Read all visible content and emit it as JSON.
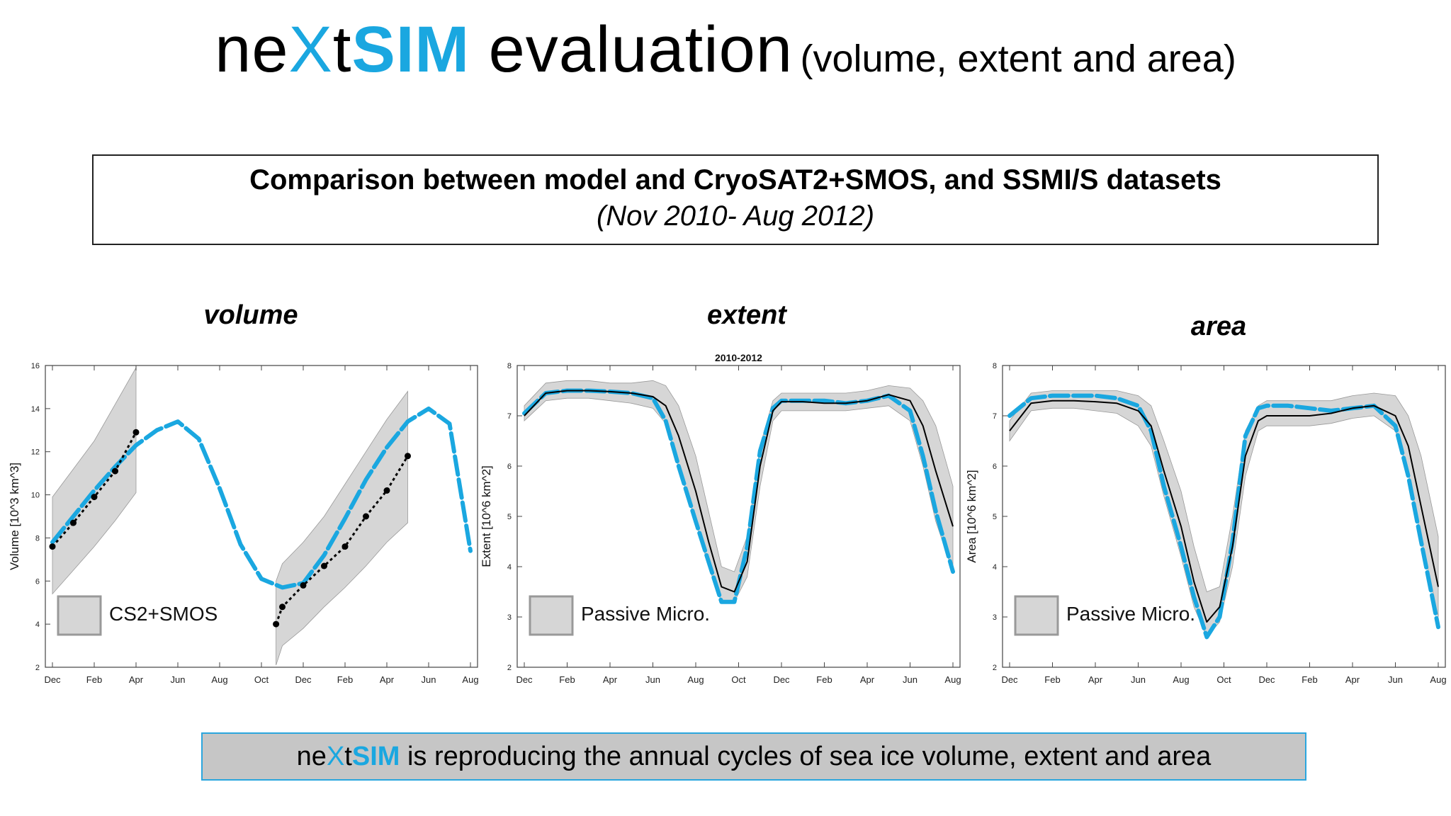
{
  "header": {
    "title_part1": "ne",
    "title_part2": "X",
    "title_part3": "t",
    "title_part4": "SIM",
    "title_part5": " evaluation",
    "title_sub": "(volume, extent and area)"
  },
  "comparison": {
    "line1": "Comparison between model and CryoSAT2+SMOS, and SSMI/S datasets",
    "line2": "(Nov 2010- Aug 2012)"
  },
  "panels": {
    "volume_label": "volume",
    "extent_label": "extent",
    "area_label": "area"
  },
  "footer": {
    "part1": "ne",
    "part2": "X",
    "part3": "t",
    "part4": "SIM",
    "part5": " is reproducing the annual cycles of sea ice volume, extent and area"
  },
  "colors": {
    "model": "#1aa7e0",
    "obs": "#000000",
    "band": "#d6d6d6",
    "accent": "#1aa7e0"
  },
  "chart_data": [
    {
      "type": "line",
      "title": "",
      "ylabel": "Volume [10^3 km^3]",
      "ylim": [
        2,
        16
      ],
      "yticks": [
        2,
        4,
        6,
        8,
        10,
        12,
        14,
        16
      ],
      "xticklabels": [
        "Dec",
        "Feb",
        "Apr",
        "Jun",
        "Aug",
        "Oct",
        "Dec",
        "Feb",
        "Apr",
        "Jun",
        "Aug"
      ],
      "legend": "CS2+SMOS",
      "legend_position": "bottom-left",
      "series": [
        {
          "role": "model",
          "x": [
            0,
            0.5,
            1,
            1.5,
            2,
            2.5,
            3,
            3.5,
            4,
            4.5,
            5,
            5.5,
            6,
            6.5,
            7,
            7.5,
            8,
            8.5,
            9,
            9.5,
            10
          ],
          "values": [
            7.8,
            9.0,
            10.2,
            11.3,
            12.3,
            13.0,
            13.4,
            12.6,
            10.3,
            7.7,
            6.1,
            5.7,
            5.9,
            7.2,
            8.9,
            10.7,
            12.2,
            13.4,
            14.0,
            13.3,
            7.4
          ]
        },
        {
          "role": "obs",
          "x": [
            0,
            0.5,
            1,
            1.5,
            2,
            5.35,
            5.5,
            6,
            6.5,
            7,
            7.5,
            8,
            8.5
          ],
          "values": [
            7.6,
            8.7,
            9.9,
            11.1,
            12.9,
            4.0,
            4.8,
            5.8,
            6.7,
            7.6,
            9.0,
            10.2,
            11.8
          ]
        }
      ],
      "bands": [
        {
          "x": [
            0,
            0.5,
            1,
            1.5,
            2
          ],
          "lower": [
            5.4,
            6.5,
            7.6,
            8.8,
            10.1
          ],
          "upper": [
            9.9,
            11.2,
            12.5,
            14.2,
            15.9
          ]
        },
        {
          "x": [
            5.35,
            5.5,
            6,
            6.5,
            7,
            7.5,
            8,
            8.5
          ],
          "lower": [
            2.1,
            3.0,
            3.8,
            4.8,
            5.7,
            6.7,
            7.8,
            8.7
          ],
          "upper": [
            6.0,
            6.8,
            7.8,
            9.0,
            10.5,
            12.0,
            13.5,
            14.8
          ]
        }
      ]
    },
    {
      "type": "line",
      "title": "2010-2012",
      "ylabel": "Extent [10^6 km^2]",
      "ylim": [
        2,
        8
      ],
      "yticks": [
        2,
        3,
        4,
        5,
        6,
        7,
        8
      ],
      "xticklabels": [
        "Dec",
        "Feb",
        "Apr",
        "Jun",
        "Aug",
        "Oct",
        "Dec",
        "Feb",
        "Apr",
        "Jun",
        "Aug"
      ],
      "legend": "Passive Micro.",
      "legend_position": "bottom-left",
      "series": [
        {
          "role": "model",
          "x": [
            0,
            0.5,
            1,
            1.5,
            2,
            2.5,
            3,
            3.3,
            3.6,
            4,
            4.3,
            4.6,
            4.9,
            5.2,
            5.5,
            5.8,
            6,
            6.5,
            7,
            7.5,
            8,
            8.5,
            9,
            9.3,
            9.6,
            10
          ],
          "values": [
            7.05,
            7.45,
            7.5,
            7.5,
            7.48,
            7.45,
            7.35,
            6.9,
            6.0,
            4.9,
            4.1,
            3.3,
            3.3,
            4.4,
            6.3,
            7.15,
            7.3,
            7.3,
            7.3,
            7.25,
            7.3,
            7.4,
            7.1,
            6.2,
            5.1,
            3.9
          ]
        },
        {
          "role": "obs",
          "x": [
            0,
            0.5,
            1,
            1.5,
            2,
            2.5,
            3,
            3.3,
            3.6,
            4,
            4.3,
            4.6,
            4.9,
            5.2,
            5.5,
            5.8,
            6,
            6.5,
            7,
            7.5,
            8,
            8.5,
            9,
            9.3,
            9.6,
            10
          ],
          "values": [
            7.0,
            7.45,
            7.5,
            7.5,
            7.48,
            7.45,
            7.38,
            7.2,
            6.6,
            5.5,
            4.5,
            3.6,
            3.5,
            4.1,
            6.0,
            7.1,
            7.28,
            7.28,
            7.25,
            7.25,
            7.3,
            7.42,
            7.3,
            6.8,
            5.9,
            4.8
          ]
        }
      ],
      "bands": [
        {
          "x": [
            0,
            0.5,
            1,
            1.5,
            2,
            2.5,
            3,
            3.3,
            3.6,
            4,
            4.3,
            4.6,
            4.9,
            5.2,
            5.5,
            5.8,
            6,
            6.5,
            7,
            7.5,
            8,
            8.5,
            9,
            9.3,
            9.6,
            10
          ],
          "lower": [
            6.9,
            7.3,
            7.35,
            7.35,
            7.3,
            7.25,
            7.15,
            6.85,
            6.0,
            4.9,
            4.0,
            3.3,
            3.3,
            3.8,
            5.6,
            6.9,
            7.1,
            7.1,
            7.1,
            7.1,
            7.15,
            7.2,
            6.9,
            6.0,
            4.9,
            3.9
          ],
          "upper": [
            7.2,
            7.65,
            7.7,
            7.7,
            7.65,
            7.65,
            7.7,
            7.6,
            7.2,
            6.2,
            5.1,
            4.0,
            3.9,
            4.6,
            6.4,
            7.3,
            7.45,
            7.45,
            7.45,
            7.45,
            7.5,
            7.6,
            7.55,
            7.3,
            6.8,
            5.6
          ]
        }
      ]
    },
    {
      "type": "line",
      "title": "",
      "ylabel": "Area [10^6 km^2]",
      "ylim": [
        2,
        8
      ],
      "yticks": [
        2,
        3,
        4,
        5,
        6,
        7,
        8
      ],
      "xticklabels": [
        "Dec",
        "Feb",
        "Apr",
        "Jun",
        "Aug",
        "Oct",
        "Dec",
        "Feb",
        "Apr",
        "Jun",
        "Aug"
      ],
      "legend": "Passive Micro.",
      "legend_position": "bottom-left",
      "series": [
        {
          "role": "model",
          "x": [
            0,
            0.5,
            1,
            1.5,
            2,
            2.5,
            3,
            3.3,
            3.6,
            4,
            4.3,
            4.6,
            4.9,
            5.2,
            5.5,
            5.8,
            6,
            6.5,
            7,
            7.5,
            8,
            8.5,
            9,
            9.3,
            9.6,
            10
          ],
          "values": [
            7.0,
            7.35,
            7.4,
            7.4,
            7.4,
            7.35,
            7.2,
            6.7,
            5.6,
            4.4,
            3.4,
            2.6,
            3.0,
            4.5,
            6.6,
            7.15,
            7.2,
            7.2,
            7.15,
            7.1,
            7.15,
            7.2,
            6.8,
            5.8,
            4.5,
            2.8
          ]
        },
        {
          "role": "obs",
          "x": [
            0,
            0.5,
            1,
            1.5,
            2,
            2.5,
            3,
            3.3,
            3.6,
            4,
            4.3,
            4.6,
            4.9,
            5.2,
            5.5,
            5.8,
            6,
            6.5,
            7,
            7.5,
            8,
            8.5,
            9,
            9.3,
            9.6,
            10
          ],
          "values": [
            6.7,
            7.25,
            7.3,
            7.3,
            7.28,
            7.25,
            7.1,
            6.8,
            5.9,
            4.8,
            3.7,
            2.9,
            3.2,
            4.4,
            6.2,
            6.9,
            7.0,
            7.0,
            7.0,
            7.05,
            7.15,
            7.2,
            7.0,
            6.4,
            5.2,
            3.6
          ]
        }
      ],
      "bands": [
        {
          "x": [
            0,
            0.5,
            1,
            1.5,
            2,
            2.5,
            3,
            3.3,
            3.6,
            4,
            4.3,
            4.6,
            4.9,
            5.2,
            5.5,
            5.8,
            6,
            6.5,
            7,
            7.5,
            8,
            8.5,
            9,
            9.3,
            9.6,
            10
          ],
          "lower": [
            6.5,
            7.1,
            7.15,
            7.15,
            7.1,
            7.05,
            6.8,
            6.4,
            5.4,
            4.2,
            3.2,
            2.6,
            2.9,
            4.0,
            5.8,
            6.7,
            6.8,
            6.8,
            6.8,
            6.85,
            6.95,
            7.0,
            6.7,
            5.9,
            4.6,
            3.0
          ],
          "upper": [
            6.9,
            7.45,
            7.5,
            7.5,
            7.5,
            7.5,
            7.4,
            7.2,
            6.5,
            5.5,
            4.4,
            3.5,
            3.6,
            5.0,
            6.7,
            7.2,
            7.3,
            7.3,
            7.3,
            7.3,
            7.4,
            7.45,
            7.4,
            7.0,
            6.2,
            4.6
          ]
        }
      ]
    }
  ]
}
